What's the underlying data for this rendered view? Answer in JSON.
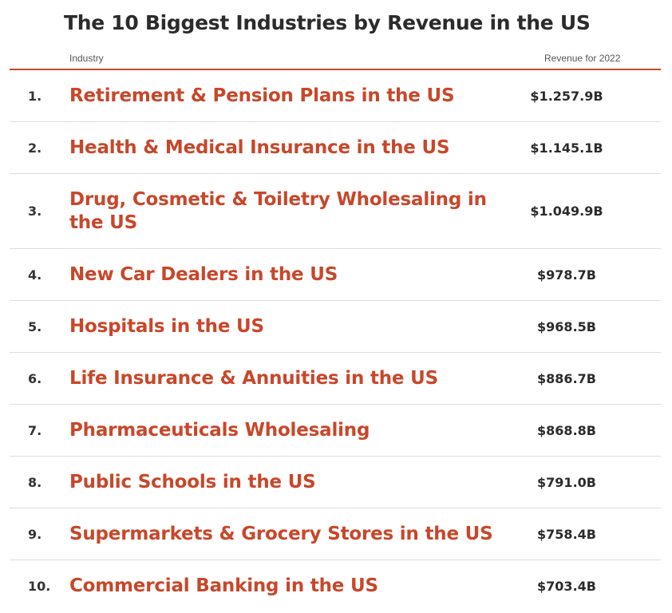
{
  "title": "The 10 Biggest Industries by Revenue in the US",
  "headers": {
    "industry": "Industry",
    "revenue": "Revenue for 2022"
  },
  "accent_color": "#c8472a",
  "rows": [
    {
      "rank": "1.",
      "name": "Retirement & Pension Plans in the US",
      "revenue": "$1.257.9B"
    },
    {
      "rank": "2.",
      "name": "Health & Medical Insurance in the US",
      "revenue": "$1.145.1B"
    },
    {
      "rank": "3.",
      "name": "Drug, Cosmetic & Toiletry Wholesaling in the US",
      "revenue": "$1.049.9B"
    },
    {
      "rank": "4.",
      "name": "New Car Dealers in the US",
      "revenue": "$978.7B"
    },
    {
      "rank": "5.",
      "name": "Hospitals in the US",
      "revenue": "$968.5B"
    },
    {
      "rank": "6.",
      "name": "Life Insurance & Annuities in the US",
      "revenue": "$886.7B"
    },
    {
      "rank": "7.",
      "name": "Pharmaceuticals Wholesaling",
      "revenue": "$868.8B"
    },
    {
      "rank": "8.",
      "name": "Public Schools in the US",
      "revenue": "$791.0B"
    },
    {
      "rank": "9.",
      "name": "Supermarkets & Grocery Stores in the US",
      "revenue": "$758.4B"
    },
    {
      "rank": "10.",
      "name": "Commercial Banking in the US",
      "revenue": "$703.4B"
    }
  ]
}
